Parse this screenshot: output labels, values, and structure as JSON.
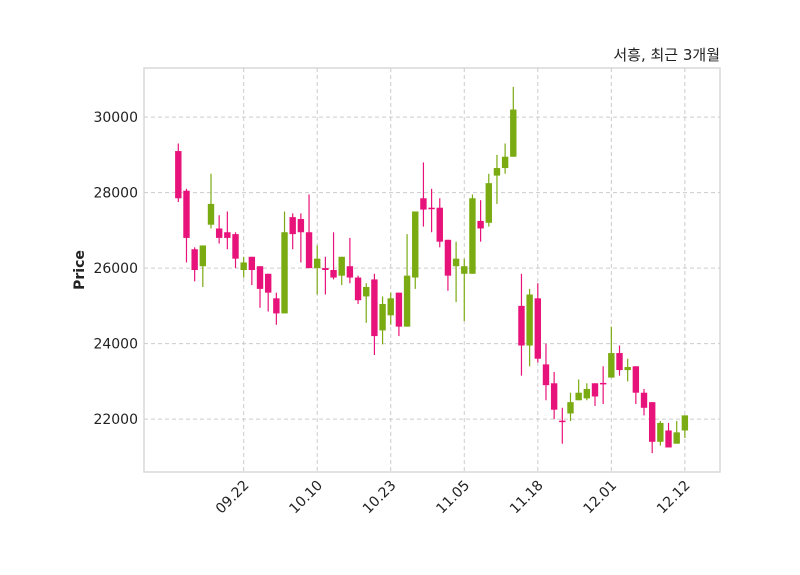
{
  "chart_data": {
    "type": "candlestick",
    "title": "서흥, 최근 3개월",
    "ylabel": "Price",
    "xlabel": "",
    "ylim": [
      20600,
      31300
    ],
    "yticks": [
      22000,
      24000,
      26000,
      28000,
      30000
    ],
    "xtick_labels": [
      {
        "index": 8,
        "label": "09.22"
      },
      {
        "index": 17,
        "label": "10.10"
      },
      {
        "index": 26,
        "label": "10.23"
      },
      {
        "index": 35,
        "label": "11.05"
      },
      {
        "index": 44,
        "label": "11.18"
      },
      {
        "index": 53,
        "label": "12.01"
      },
      {
        "index": 62,
        "label": "12.12"
      }
    ],
    "grid": true,
    "colors": {
      "up": "#7aab12",
      "down": "#e8137a",
      "grid": "#cccccc",
      "frame": "#d9d9d9"
    },
    "ohlc": [
      [
        29100,
        29300,
        27750,
        27850
      ],
      [
        28050,
        28100,
        26150,
        26800
      ],
      [
        26500,
        26550,
        25650,
        25950
      ],
      [
        26050,
        26600,
        25500,
        26600
      ],
      [
        27150,
        28500,
        27050,
        27700
      ],
      [
        27050,
        27400,
        26650,
        26800
      ],
      [
        26950,
        27500,
        26500,
        26800
      ],
      [
        26900,
        26950,
        26000,
        26250
      ],
      [
        25950,
        26300,
        25750,
        26150
      ],
      [
        26300,
        26300,
        25550,
        25950
      ],
      [
        26050,
        26050,
        24950,
        25450
      ],
      [
        25850,
        25850,
        24850,
        25350
      ],
      [
        25200,
        25350,
        24500,
        24800
      ],
      [
        24800,
        27500,
        24800,
        26950
      ],
      [
        27350,
        27450,
        26500,
        26900
      ],
      [
        27300,
        27450,
        26150,
        26950
      ],
      [
        26950,
        27950,
        26000,
        26000
      ],
      [
        26000,
        26600,
        25300,
        26250
      ],
      [
        26000,
        26300,
        25300,
        25950
      ],
      [
        25950,
        26950,
        25700,
        25750
      ],
      [
        25800,
        26300,
        25550,
        26300
      ],
      [
        26050,
        26800,
        25600,
        25750
      ],
      [
        25750,
        25800,
        25050,
        25150
      ],
      [
        25250,
        25600,
        24550,
        25500
      ],
      [
        25700,
        25850,
        23700,
        24200
      ],
      [
        24350,
        25250,
        23980,
        25050
      ],
      [
        24750,
        25350,
        24500,
        25200
      ],
      [
        25350,
        25350,
        24200,
        24450
      ],
      [
        24450,
        26900,
        24450,
        25800
      ],
      [
        25750,
        27500,
        25450,
        27500
      ],
      [
        27850,
        28800,
        27100,
        27550
      ],
      [
        27600,
        28100,
        26950,
        27580
      ],
      [
        27600,
        27850,
        26550,
        26700
      ],
      [
        26750,
        26750,
        25400,
        25800
      ],
      [
        26050,
        26700,
        25100,
        26250
      ],
      [
        25850,
        26250,
        24600,
        26050
      ],
      [
        25850,
        27950,
        25850,
        27850
      ],
      [
        27250,
        27800,
        26700,
        27050
      ],
      [
        27200,
        28500,
        27100,
        28250
      ],
      [
        28450,
        29000,
        27700,
        28650
      ],
      [
        28650,
        29300,
        28500,
        28950
      ],
      [
        28950,
        30800,
        28950,
        30200
      ],
      [
        25000,
        25850,
        23150,
        23950
      ],
      [
        23950,
        25450,
        23400,
        25300
      ],
      [
        25200,
        25600,
        23500,
        23600
      ],
      [
        23450,
        24000,
        22500,
        22900
      ],
      [
        22950,
        23250,
        22000,
        22250
      ],
      [
        21960,
        22300,
        21350,
        21940
      ],
      [
        22150,
        22700,
        21950,
        22450
      ],
      [
        22500,
        23050,
        22500,
        22700
      ],
      [
        22550,
        22950,
        22500,
        22800
      ],
      [
        22950,
        22950,
        22350,
        22600
      ],
      [
        22960,
        23400,
        22400,
        22940
      ],
      [
        23100,
        24450,
        23100,
        23750
      ],
      [
        23750,
        23950,
        23150,
        23300
      ],
      [
        23300,
        23600,
        23000,
        23380
      ],
      [
        23400,
        23400,
        22400,
        22700
      ],
      [
        22700,
        22800,
        22100,
        22300
      ],
      [
        22450,
        22450,
        21100,
        21400
      ],
      [
        21400,
        21950,
        21300,
        21900
      ],
      [
        21700,
        21900,
        21250,
        21250
      ],
      [
        21350,
        21950,
        21350,
        21650
      ],
      [
        21700,
        22100,
        21500,
        22100
      ]
    ]
  }
}
